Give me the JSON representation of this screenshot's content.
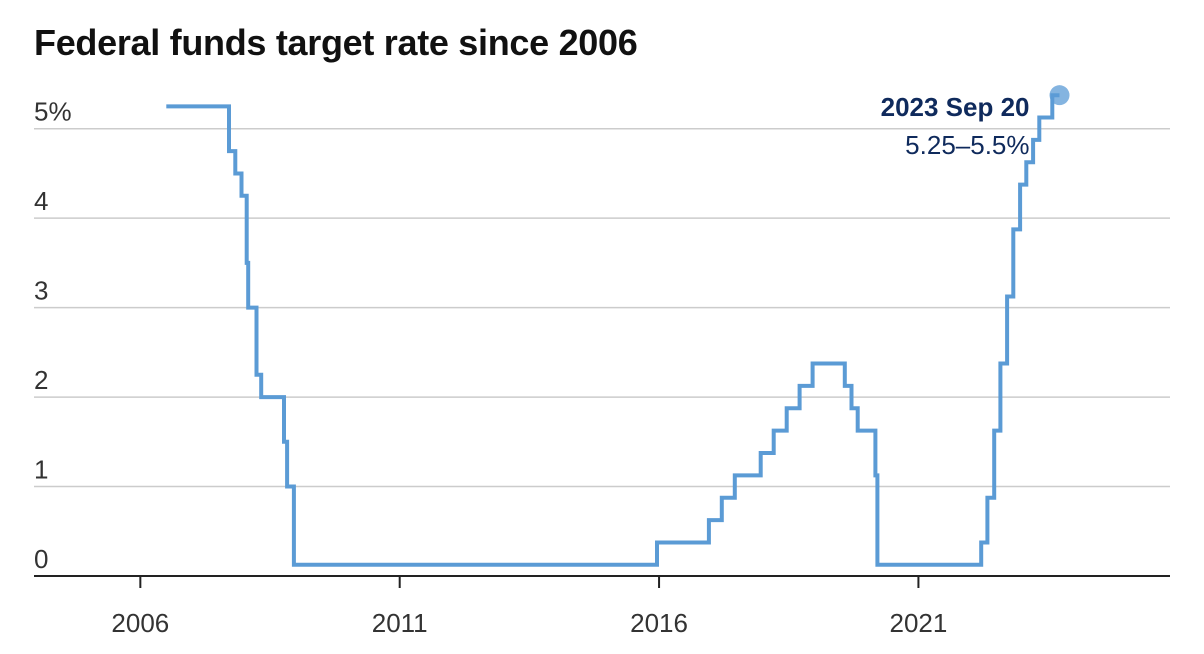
{
  "title": "Federal funds target rate since 2006",
  "colors": {
    "line": "#5b9bd5",
    "annotation": "#0f2a5c",
    "grid": "#cccccc",
    "axis": "#222222",
    "text": "#333333"
  },
  "chart_data": {
    "type": "line",
    "title": "Federal funds target rate since 2006",
    "xlabel": "",
    "ylabel": "",
    "xlim": [
      2003.95,
      2025.85
    ],
    "ylim": [
      0,
      5.5
    ],
    "x_ticks": [
      {
        "value": 2006,
        "label": "2006"
      },
      {
        "value": 2011,
        "label": "2011"
      },
      {
        "value": 2016,
        "label": "2016"
      },
      {
        "value": 2021,
        "label": "2021"
      }
    ],
    "y_ticks": [
      {
        "value": 0,
        "label": "0"
      },
      {
        "value": 1,
        "label": "1"
      },
      {
        "value": 2,
        "label": "2"
      },
      {
        "value": 3,
        "label": "3"
      },
      {
        "value": 4,
        "label": "4"
      },
      {
        "value": 5,
        "label": "5%"
      }
    ],
    "grid": "horizontal",
    "series": [
      {
        "step": "after",
        "points": [
          [
            2006.5,
            5.25
          ],
          [
            2007.71,
            4.75
          ],
          [
            2007.83,
            4.5
          ],
          [
            2007.95,
            4.25
          ],
          [
            2008.05,
            3.5
          ],
          [
            2008.08,
            3.0
          ],
          [
            2008.24,
            2.25
          ],
          [
            2008.33,
            2.0
          ],
          [
            2008.77,
            1.5
          ],
          [
            2008.83,
            1.0
          ],
          [
            2008.96,
            0.125
          ],
          [
            2015.96,
            0.375
          ],
          [
            2016.96,
            0.625
          ],
          [
            2017.21,
            0.875
          ],
          [
            2017.46,
            1.125
          ],
          [
            2017.96,
            1.375
          ],
          [
            2018.21,
            1.625
          ],
          [
            2018.46,
            1.875
          ],
          [
            2018.71,
            2.125
          ],
          [
            2018.96,
            2.375
          ],
          [
            2019.58,
            2.125
          ],
          [
            2019.71,
            1.875
          ],
          [
            2019.83,
            1.625
          ],
          [
            2020.17,
            1.125
          ],
          [
            2020.21,
            0.125
          ],
          [
            2022.21,
            0.375
          ],
          [
            2022.33,
            0.875
          ],
          [
            2022.46,
            1.625
          ],
          [
            2022.58,
            2.375
          ],
          [
            2022.71,
            3.125
          ],
          [
            2022.83,
            3.875
          ],
          [
            2022.96,
            4.375
          ],
          [
            2023.08,
            4.625
          ],
          [
            2023.21,
            4.875
          ],
          [
            2023.33,
            5.125
          ],
          [
            2023.58,
            5.375
          ],
          [
            2023.72,
            5.375
          ]
        ]
      }
    ],
    "annotation": {
      "x": 2023.72,
      "y": 5.375,
      "date_label": "2023 Sep 20",
      "value_label": "5.25–5.5%"
    }
  }
}
